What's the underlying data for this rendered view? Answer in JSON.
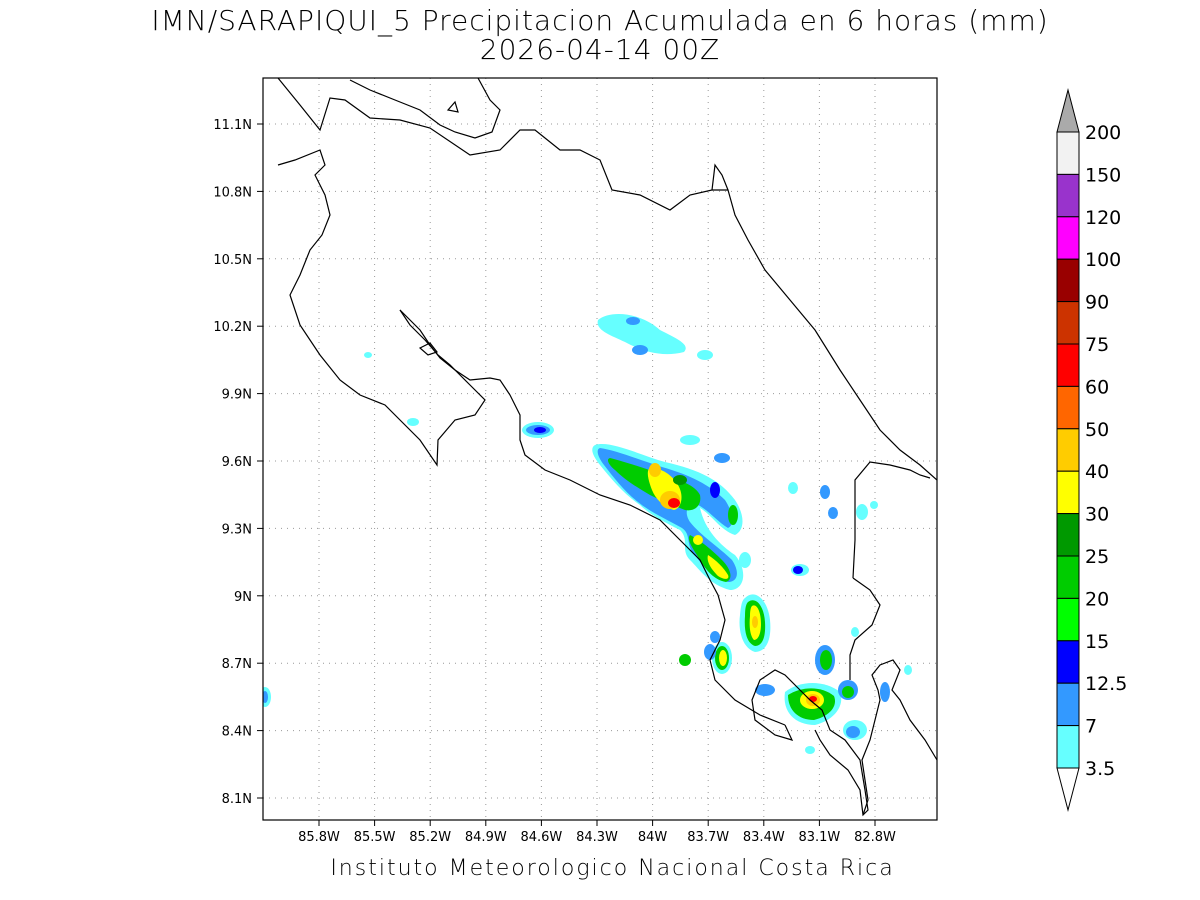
{
  "title": {
    "line1": "IMN/SARAPIQUI_5 Precipitacion Acumulada en 6 horas (mm)",
    "line2": "2026-04-14 00Z"
  },
  "footer": "Instituto Meteorologico Nacional Costa Rica",
  "map": {
    "lon_range": [
      -86.0,
      -82.5
    ],
    "lat_range": [
      8.0,
      11.2
    ],
    "x_ticks": [
      "85.8W",
      "85.5W",
      "85.2W",
      "84.9W",
      "84.6W",
      "84.3W",
      "84W",
      "83.7W",
      "83.4W",
      "83.1W",
      "82.8W"
    ],
    "y_ticks": [
      "11.1N",
      "10.8N",
      "10.5N",
      "10.2N",
      "9.9N",
      "9.6N",
      "9.3N",
      "9N",
      "8.7N",
      "8.4N",
      "8.1N"
    ],
    "grid": "dotted"
  },
  "colorbar": {
    "labels": [
      "3.5",
      "7",
      "12.5",
      "15",
      "20",
      "25",
      "30",
      "40",
      "50",
      "60",
      "75",
      "90",
      "100",
      "120",
      "150",
      "200"
    ],
    "colors": [
      "#66ffff",
      "#3399ff",
      "#0000ff",
      "#00ff00",
      "#00cc00",
      "#009900",
      "#ffff00",
      "#ffcc00",
      "#ff6600",
      "#ff0000",
      "#cc3300",
      "#990000",
      "#ff00ff",
      "#9933cc",
      "#f2f2f2"
    ],
    "over_color": "#aaaaaa",
    "under_color": "#ffffff"
  }
}
